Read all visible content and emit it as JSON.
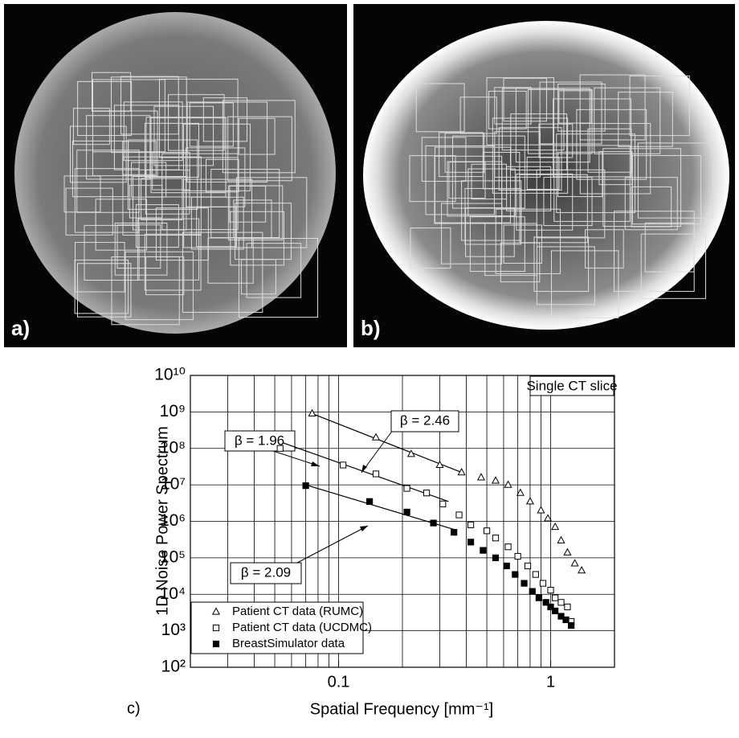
{
  "panels": {
    "a": "a)",
    "b": "b)",
    "c": "c)"
  },
  "chart_data": {
    "type": "scatter",
    "xlabel": "Spatial Frequency [mm⁻¹]",
    "ylabel": "1D Noise Power Spectrum",
    "log_x": true,
    "log_y": true,
    "grid": true,
    "xlim": [
      0.02,
      2
    ],
    "xticks": [
      0.1,
      1
    ],
    "x_minor_ticks": [
      0.03,
      0.04,
      0.05,
      0.06,
      0.07,
      0.08,
      0.09,
      0.2,
      0.3,
      0.4,
      0.5,
      0.6,
      0.7,
      0.8,
      0.9
    ],
    "ylim": [
      100,
      10000000000
    ],
    "yticks": [
      {
        "value": 100,
        "label": "10²"
      },
      {
        "value": 1000,
        "label": "10³"
      },
      {
        "value": 10000,
        "label": "10⁴"
      },
      {
        "value": 100000,
        "label": "10⁵"
      },
      {
        "value": 1000000,
        "label": "10⁶"
      },
      {
        "value": 10000000,
        "label": "10⁷"
      },
      {
        "value": 100000000,
        "label": "10⁸"
      },
      {
        "value": 1000000000,
        "label": "10⁹"
      },
      {
        "value": 10000000000,
        "label": "10¹⁰"
      }
    ],
    "legend": "lower left",
    "series": [
      {
        "name": "Patient CT data (RUMC)",
        "color": "#000000",
        "marker": "triangle-open",
        "x": [
          0.075,
          0.15,
          0.22,
          0.3,
          0.38,
          0.47,
          0.55,
          0.63,
          0.72,
          0.8,
          0.9,
          0.97,
          1.05,
          1.12,
          1.2,
          1.3,
          1.4
        ],
        "values": [
          900000000,
          200000000,
          70000000,
          35000000,
          22000000,
          16000000,
          13000000,
          10000000,
          6000000,
          3500000,
          2000000,
          1200000,
          700000,
          300000,
          140000,
          70000,
          45000
        ]
      },
      {
        "name": "Patient CT data (UCDMC)",
        "color": "#000000",
        "marker": "square-open",
        "x": [
          0.053,
          0.105,
          0.15,
          0.21,
          0.26,
          0.31,
          0.37,
          0.42,
          0.5,
          0.55,
          0.63,
          0.7,
          0.78,
          0.85,
          0.92,
          1.0,
          1.05,
          1.12,
          1.2,
          1.25
        ],
        "values": [
          100000000,
          35000000,
          20000000,
          8000000,
          6000000,
          3000000,
          1500000,
          800000,
          550000,
          350000,
          200000,
          110000,
          60000,
          35000,
          20000,
          13000,
          8000,
          6000,
          4500,
          1800
        ]
      },
      {
        "name": "BreastSimulator data",
        "color": "#000000",
        "marker": "square-filled",
        "x": [
          0.07,
          0.14,
          0.21,
          0.28,
          0.35,
          0.42,
          0.48,
          0.55,
          0.62,
          0.68,
          0.75,
          0.82,
          0.88,
          0.95,
          1.0,
          1.05,
          1.12,
          1.18,
          1.25
        ],
        "values": [
          9500000,
          3500000,
          1800000,
          900000,
          500000,
          270000,
          160000,
          100000,
          60000,
          35000,
          20000,
          12000,
          8000,
          6000,
          4500,
          3500,
          2500,
          2000,
          1400
        ]
      }
    ],
    "fits": [
      {
        "x": [
          0.075,
          0.38
        ],
        "y": [
          900000000,
          22000000
        ]
      },
      {
        "x": [
          0.055,
          0.33
        ],
        "y": [
          140000000,
          3500000
        ]
      },
      {
        "x": [
          0.07,
          0.35
        ],
        "y": [
          10000000,
          600000
        ]
      }
    ],
    "annotations": [
      "Single CT slice",
      "β = 1.96",
      "β = 2.46",
      "β = 2.09"
    ]
  }
}
